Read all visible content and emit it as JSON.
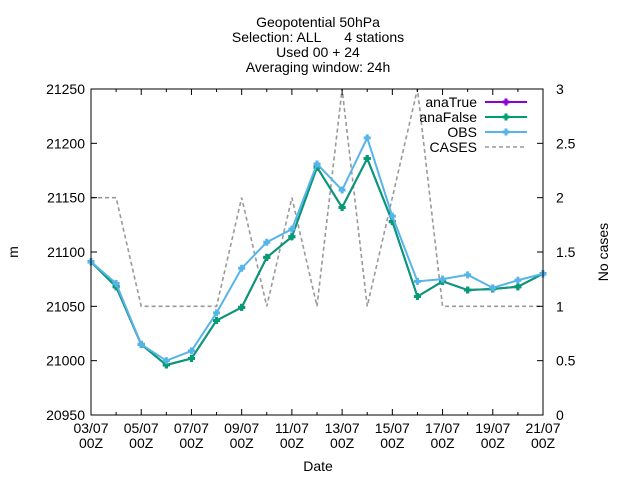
{
  "chart_data": {
    "type": "line",
    "title_lines": [
      "Geopotential 50hPa",
      "Selection: ALL      4 stations",
      "Used 00 + 24",
      "Averaging window: 24h"
    ],
    "xlabel": "Date",
    "ylabel": "m",
    "y2label": "No cases",
    "x_range": [
      0,
      18
    ],
    "ylim": [
      20950,
      21250
    ],
    "y2lim": [
      0,
      3
    ],
    "x_ticks": [
      {
        "x": 0,
        "line1": "03/07",
        "line2": "00Z"
      },
      {
        "x": 2,
        "line1": "05/07",
        "line2": "00Z"
      },
      {
        "x": 4,
        "line1": "07/07",
        "line2": "00Z"
      },
      {
        "x": 6,
        "line1": "09/07",
        "line2": "00Z"
      },
      {
        "x": 8,
        "line1": "11/07",
        "line2": "00Z"
      },
      {
        "x": 10,
        "line1": "13/07",
        "line2": "00Z"
      },
      {
        "x": 12,
        "line1": "15/07",
        "line2": "00Z"
      },
      {
        "x": 14,
        "line1": "17/07",
        "line2": "00Z"
      },
      {
        "x": 16,
        "line1": "19/07",
        "line2": "00Z"
      },
      {
        "x": 18,
        "line1": "21/07",
        "line2": "00Z"
      }
    ],
    "y_ticks": [
      20950,
      21000,
      21050,
      21100,
      21150,
      21200,
      21250
    ],
    "y2_ticks": [
      0,
      0.5,
      1,
      1.5,
      2,
      2.5,
      3
    ],
    "legend_position": "top-right",
    "x": [
      0,
      1,
      2,
      3,
      4,
      5,
      6,
      7,
      8,
      9,
      10,
      11,
      12,
      13,
      14,
      15,
      16,
      17,
      18
    ],
    "series": [
      {
        "name": "anaTrue",
        "axis": "y1",
        "color": "#8b00d4",
        "style": "line-points",
        "values": [
          21091,
          21068,
          21015,
          20996,
          21002,
          21037,
          21049,
          21095,
          21114,
          21178,
          21141,
          21186,
          21128,
          21059,
          21073,
          21065,
          21066,
          21068,
          21080
        ]
      },
      {
        "name": "anaFalse",
        "axis": "y1",
        "color": "#009e73",
        "style": "line-points",
        "values": [
          21091,
          21068,
          21015,
          20996,
          21002,
          21037,
          21049,
          21095,
          21114,
          21178,
          21141,
          21186,
          21128,
          21059,
          21073,
          21065,
          21066,
          21068,
          21080
        ]
      },
      {
        "name": "OBS",
        "axis": "y1",
        "color": "#56b4e9",
        "style": "line-points",
        "values": [
          21091,
          21071,
          21015,
          21000,
          21009,
          21044,
          21085,
          21109,
          21121,
          21181,
          21157,
          21205,
          21133,
          21073,
          21075,
          21079,
          21067,
          21074,
          21080
        ]
      },
      {
        "name": "CASES",
        "axis": "y2",
        "color": "#999999",
        "style": "dashed",
        "x": [
          0,
          1,
          1.5,
          2,
          3,
          4,
          5,
          6,
          7,
          8,
          9,
          10,
          11,
          12,
          13,
          14,
          15,
          16,
          17,
          18
        ],
        "values": [
          2,
          2,
          1.5,
          1,
          1,
          1,
          1,
          2,
          1,
          2,
          1,
          3,
          1,
          2,
          3,
          1,
          1,
          1,
          1,
          1
        ]
      }
    ]
  }
}
